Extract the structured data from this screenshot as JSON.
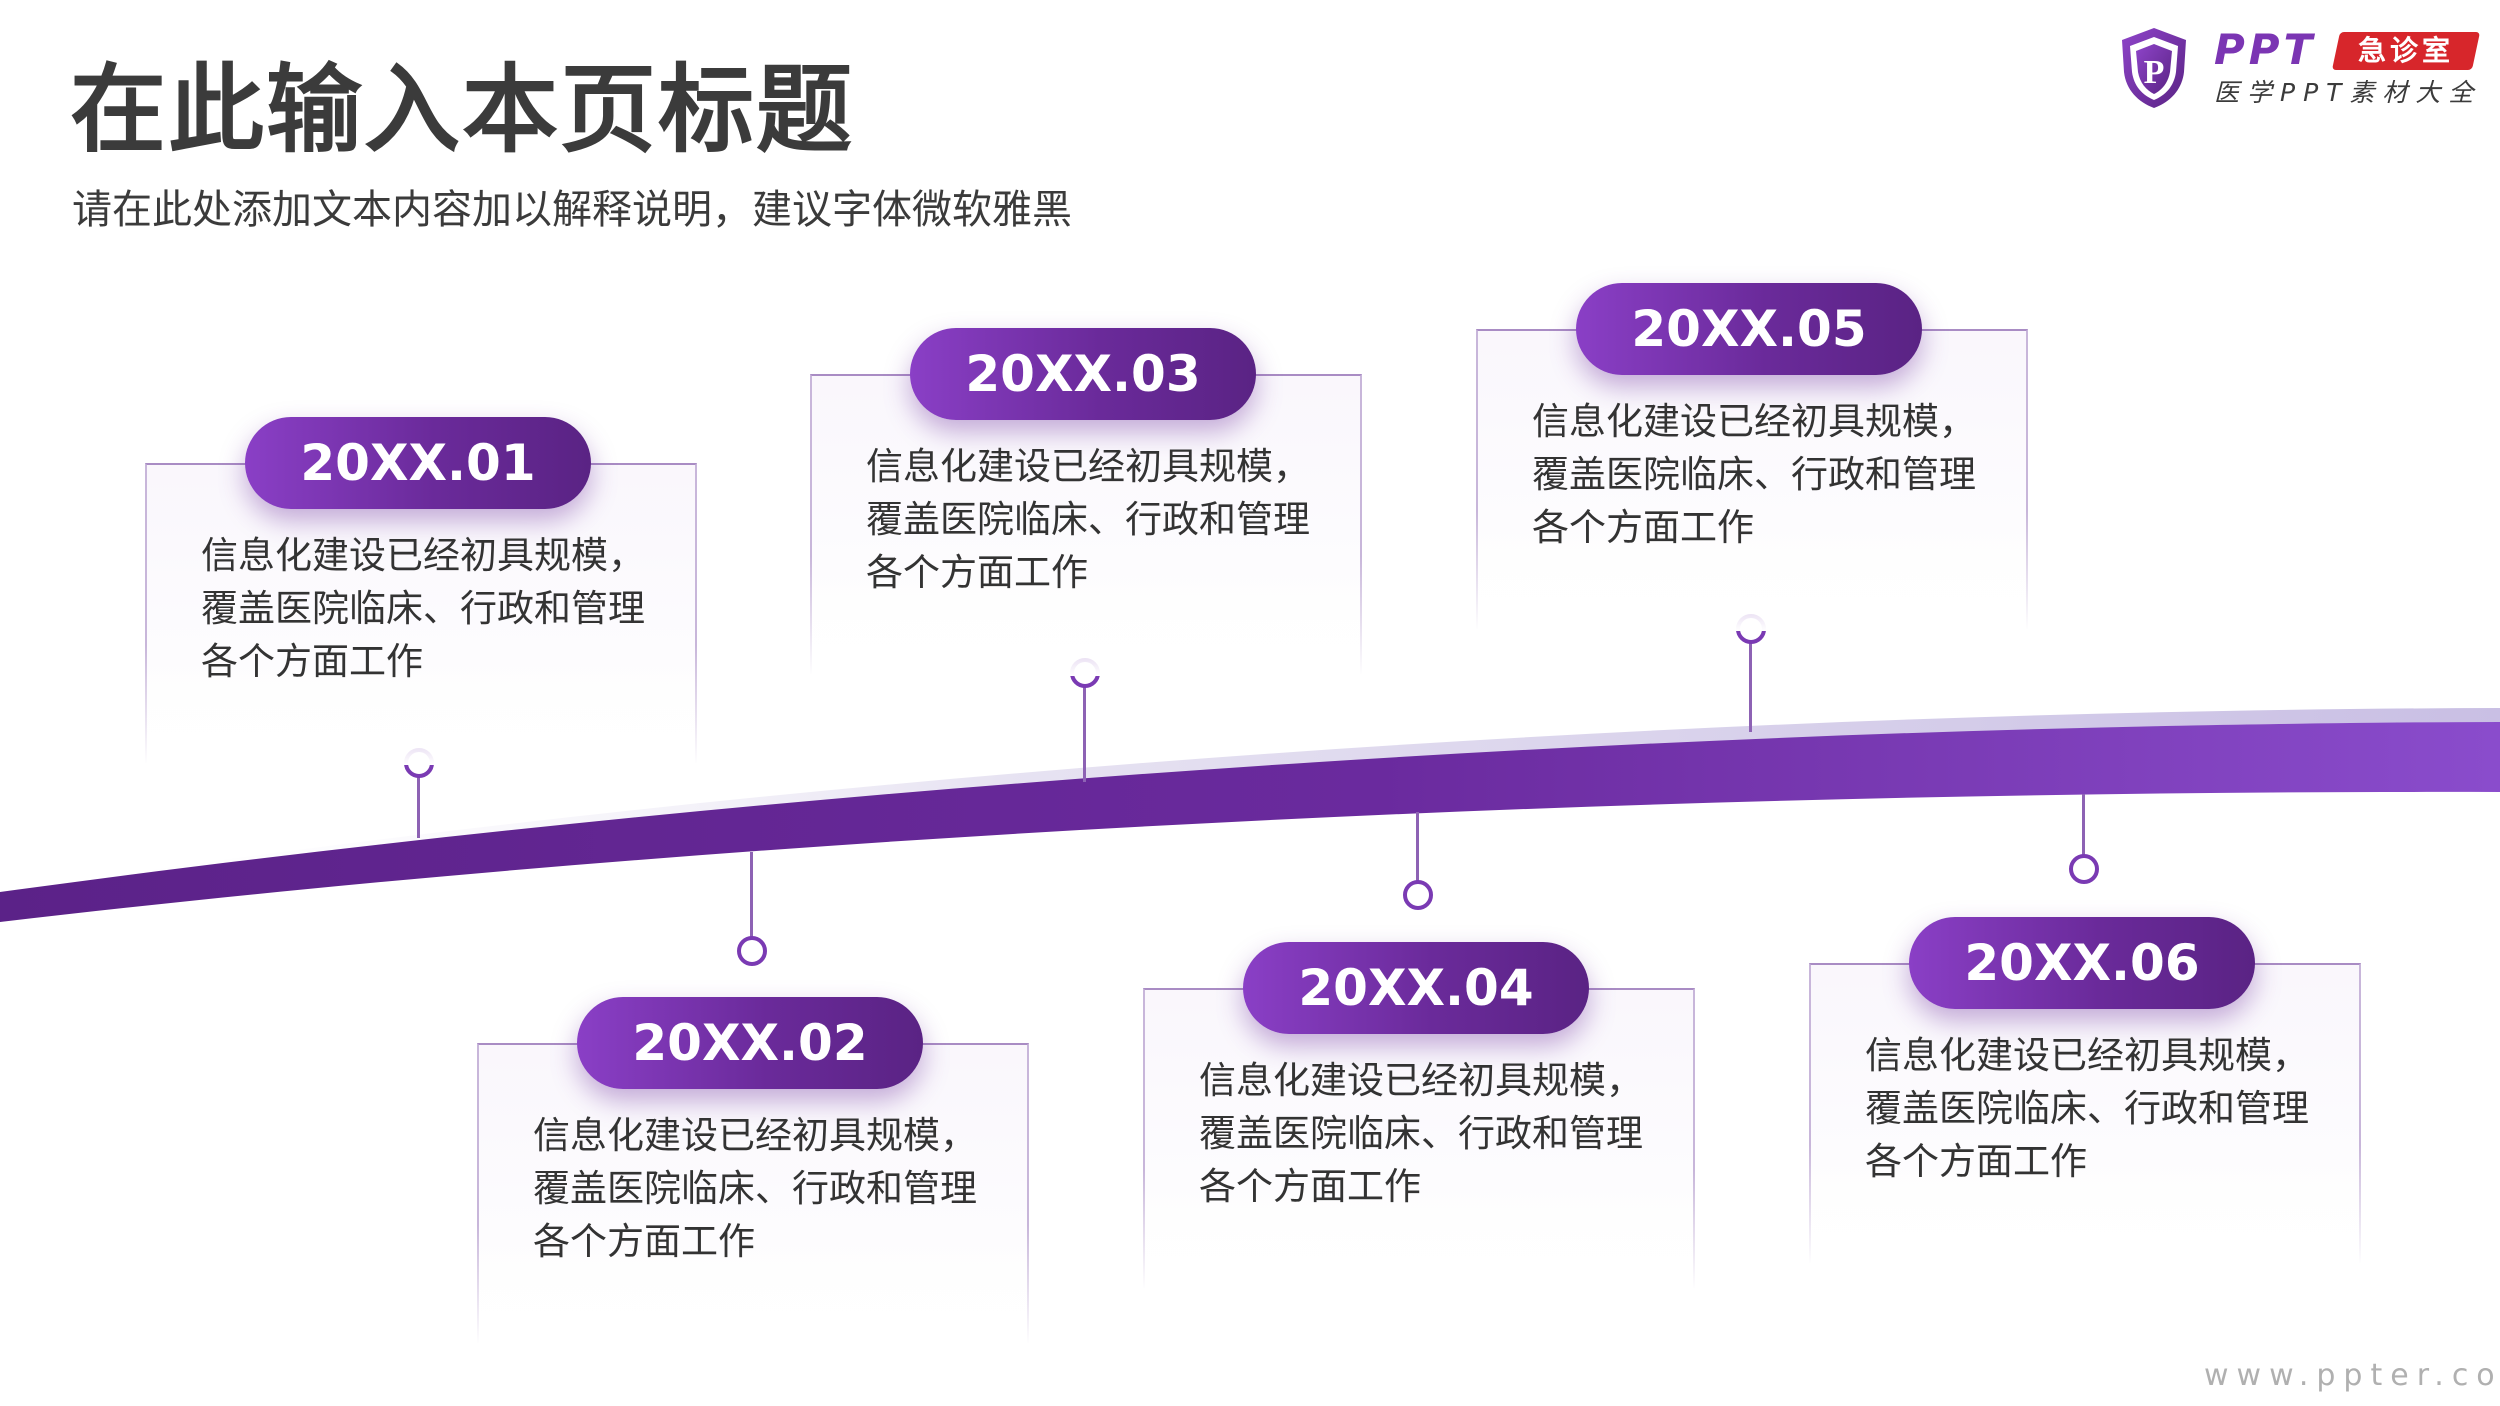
{
  "header": {
    "title": "在此输入本页标题",
    "subtitle": "请在此处添加文本内容加以解释说明，建议字体微软雅黑"
  },
  "logo": {
    "shield_letter": "P",
    "brand": "PPT",
    "badge": "急诊室",
    "tagline": "医学PPT素材大全"
  },
  "colors": {
    "accent": "#7b35b3",
    "accent_dark": "#5a2384",
    "badge_red": "#d7262b",
    "text": "#3b3b3b"
  },
  "timeline": [
    {
      "date": "20XX.01",
      "text": "信息化建设已经初具规模，覆盖医院临床、行政和管理各个方面工作"
    },
    {
      "date": "20XX.02",
      "text": "信息化建设已经初具规模，覆盖医院临床、行政和管理各个方面工作"
    },
    {
      "date": "20XX.03",
      "text": "信息化建设已经初具规模，覆盖医院临床、行政和管理各个方面工作"
    },
    {
      "date": "20XX.04",
      "text": "信息化建设已经初具规模，覆盖医院临床、行政和管理各个方面工作"
    },
    {
      "date": "20XX.05",
      "text": "信息化建设已经初具规模，覆盖医院临床、行政和管理各个方面工作"
    },
    {
      "date": "20XX.06",
      "text": "信息化建设已经初具规模，覆盖医院临床、行政和管理各个方面工作"
    }
  ],
  "footer": {
    "watermark": "www.ppter.com"
  }
}
